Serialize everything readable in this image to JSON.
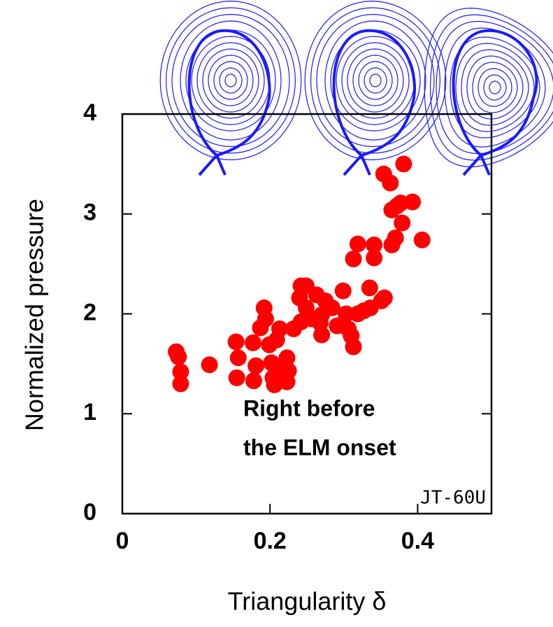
{
  "chart_data": {
    "type": "scatter",
    "x_label": "Triangularity δ",
    "y_label": "Normalized pressure",
    "annotations": [
      "Right before",
      "the ELM onset",
      "JT-60U"
    ],
    "color": "#ff0000",
    "xlim": [
      0,
      0.5
    ],
    "ylim": [
      0,
      4
    ],
    "xticks": [
      0,
      0.2,
      0.4
    ],
    "yticks": [
      0,
      1,
      2,
      3,
      4
    ],
    "x": [
      0.073,
      0.076,
      0.079,
      0.079,
      0.118,
      0.154,
      0.157,
      0.155,
      0.177,
      0.181,
      0.178,
      0.187,
      0.192,
      0.194,
      0.199,
      0.202,
      0.204,
      0.206,
      0.209,
      0.213,
      0.217,
      0.223,
      0.223,
      0.225,
      0.232,
      0.242,
      0.24,
      0.242,
      0.249,
      0.249,
      0.256,
      0.263,
      0.27,
      0.268,
      0.275,
      0.27,
      0.284,
      0.291,
      0.299,
      0.303,
      0.306,
      0.31,
      0.313,
      0.319,
      0.327,
      0.313,
      0.319,
      0.336,
      0.341,
      0.341,
      0.351,
      0.355,
      0.354,
      0.363,
      0.365,
      0.37,
      0.365,
      0.372,
      0.379,
      0.377,
      0.381,
      0.393,
      0.406,
      0.335
    ],
    "values": [
      1.62,
      1.57,
      1.42,
      1.3,
      1.49,
      1.72,
      1.56,
      1.36,
      1.71,
      1.48,
      1.33,
      1.86,
      2.06,
      1.95,
      1.69,
      1.51,
      1.36,
      1.29,
      1.74,
      1.85,
      1.46,
      1.56,
      1.32,
      1.43,
      1.85,
      1.92,
      2.16,
      2.28,
      2.28,
      2.06,
      1.95,
      2.19,
      1.99,
      1.91,
      2.13,
      1.79,
      2.06,
      1.88,
      2.23,
      2.0,
      1.85,
      1.78,
      1.67,
      2.0,
      2.03,
      2.55,
      2.7,
      2.06,
      2.56,
      2.69,
      2.13,
      2.16,
      3.4,
      3.31,
      2.69,
      2.76,
      3.04,
      3.08,
      2.91,
      3.11,
      3.5,
      3.12,
      2.74,
      2.26
    ]
  }
}
